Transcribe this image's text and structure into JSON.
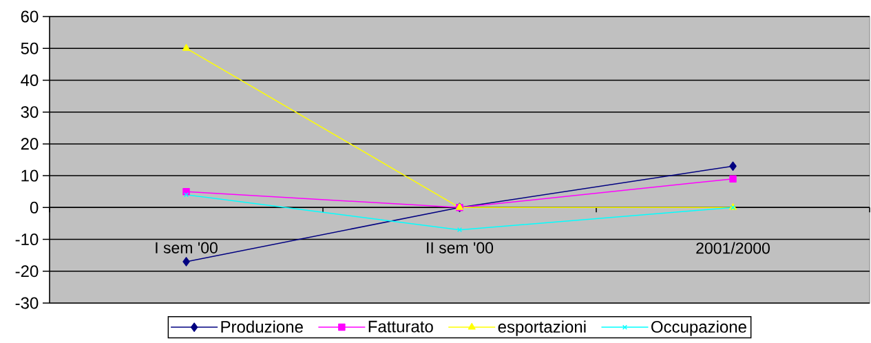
{
  "chart_data": {
    "type": "line",
    "categories": [
      "I sem '00",
      "II sem '00",
      "2001/2000"
    ],
    "series": [
      {
        "name": "Produzione",
        "color": "#000080",
        "marker": "diamond",
        "values": [
          -17,
          0,
          13
        ]
      },
      {
        "name": "Fatturato",
        "color": "#ff00ff",
        "marker": "square",
        "values": [
          5,
          0,
          9
        ]
      },
      {
        "name": "esportazioni",
        "color": "#ffff00",
        "marker": "triangle",
        "values": [
          50,
          0,
          0
        ]
      },
      {
        "name": "Occupazione",
        "color": "#00ffff",
        "marker": "cross",
        "values": [
          4,
          -7,
          0
        ]
      }
    ],
    "ylim": [
      -30,
      60
    ],
    "yticks": [
      -30,
      -20,
      -10,
      0,
      10,
      20,
      30,
      40,
      50,
      60
    ],
    "grid": "y",
    "legend": "bottom"
  }
}
